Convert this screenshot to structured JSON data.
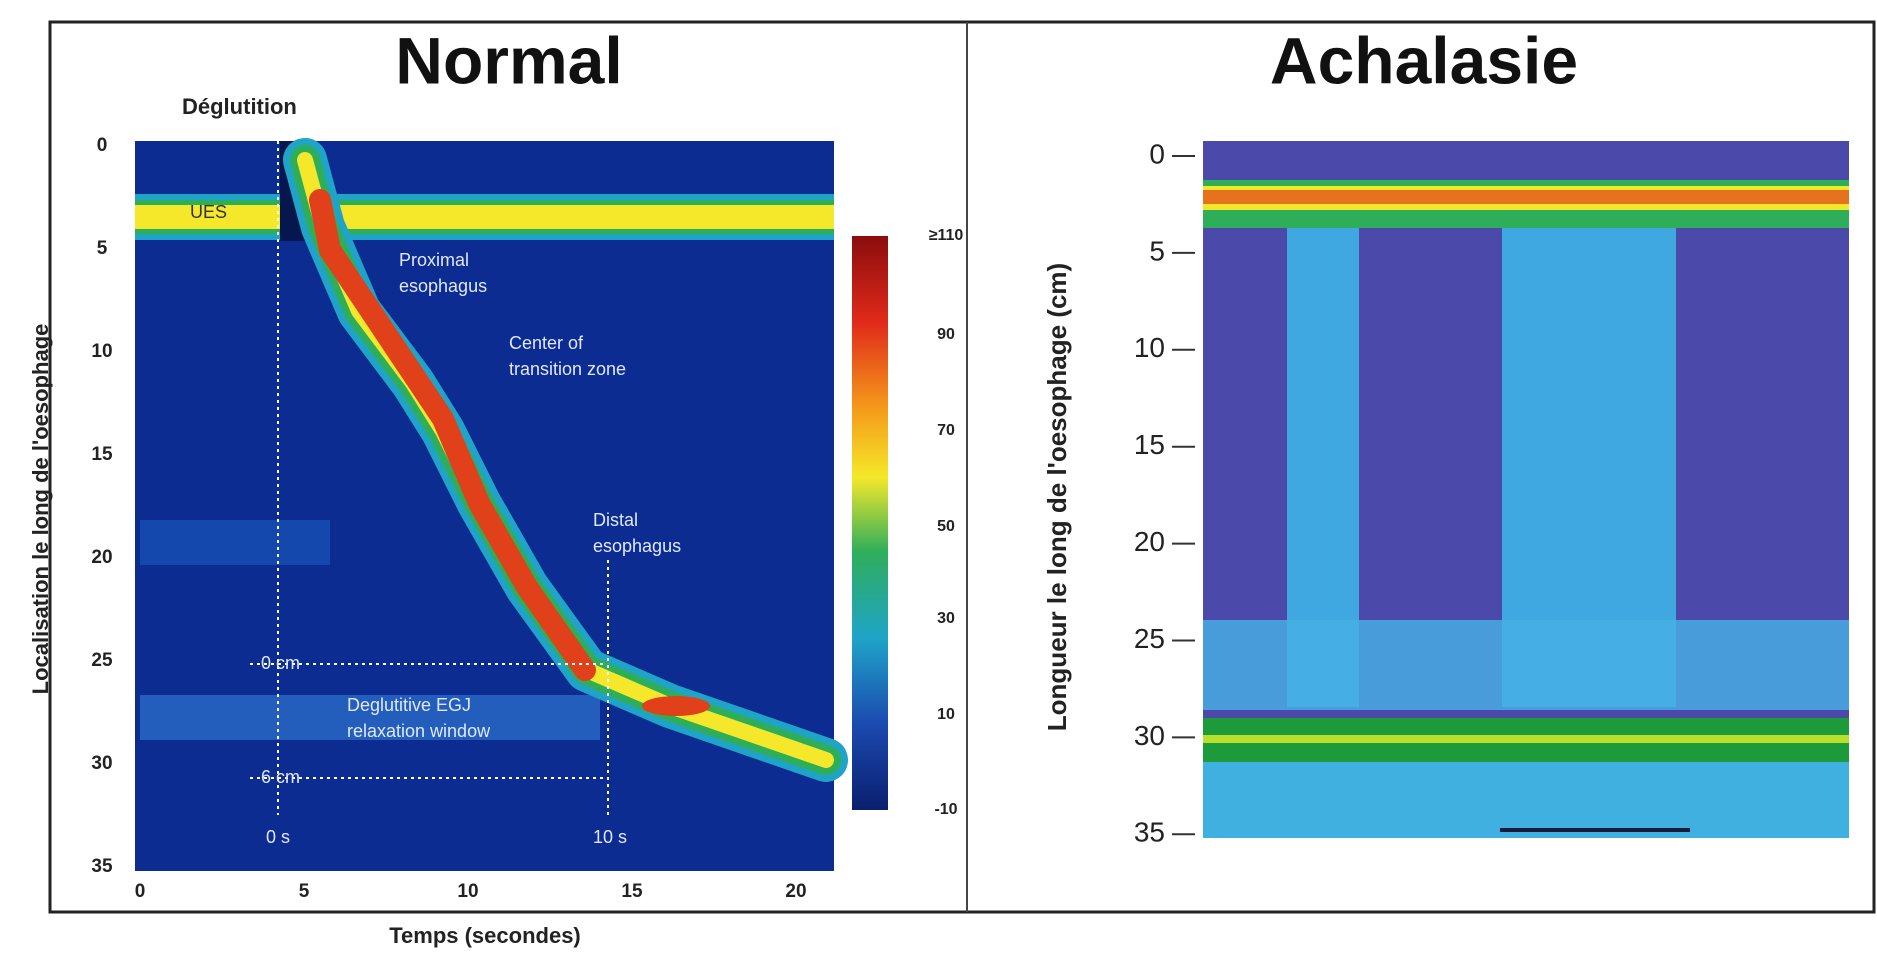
{
  "left": {
    "title": "Normal",
    "subtitle": "Déglutition",
    "y_label": "Localisation le long de l'oesophage",
    "x_label": "Temps (secondes)",
    "yticks": [
      0,
      5,
      10,
      15,
      20,
      25,
      30,
      35
    ],
    "xticks": [
      0,
      5,
      10,
      15,
      20
    ],
    "colorbar_ticks": [
      "≥110",
      "90",
      "70",
      "50",
      "30",
      "10",
      "-10"
    ],
    "annotations": {
      "ues": "UES",
      "proximal": [
        "Proximal",
        "esophagus"
      ],
      "transition": [
        "Center of",
        "transition zone"
      ],
      "distal": [
        "Distal",
        "esophagus"
      ],
      "zero_cm": "0 cm",
      "egj": [
        "Deglutitive EGJ",
        "relaxation window"
      ],
      "six_cm": "6 cm",
      "zero_s": "0 s",
      "ten_s": "10 s"
    }
  },
  "right": {
    "title": "Achalasie",
    "y_label": "Longueur le long de l'oesophage (cm)",
    "yticks": [
      0,
      5,
      10,
      15,
      20,
      25,
      30,
      35
    ]
  }
}
